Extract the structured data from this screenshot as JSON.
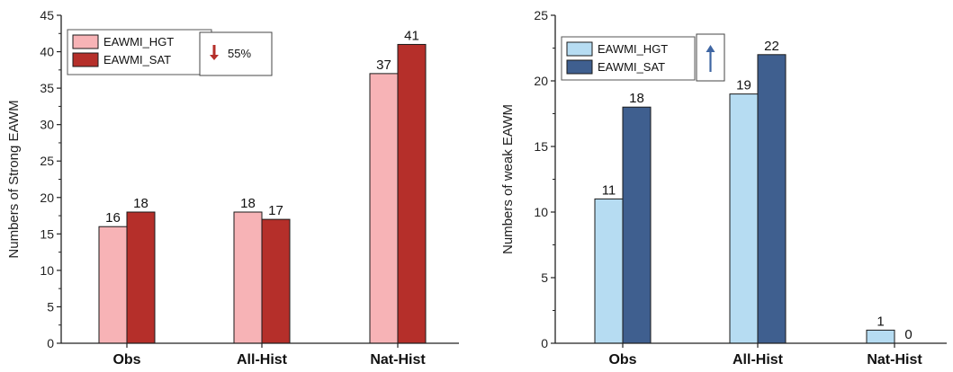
{
  "chart_data": [
    {
      "type": "bar",
      "ylabel": "Numbers of Strong EAWM",
      "xlabel": "",
      "ylim": [
        0,
        45
      ],
      "yticks": [
        0,
        5,
        10,
        15,
        20,
        25,
        30,
        35,
        40,
        45
      ],
      "categories": [
        "Obs",
        "All-Hist",
        "Nat-Hist"
      ],
      "series": [
        {
          "name": "EAWMI_HGT",
          "values": [
            16,
            18,
            37
          ],
          "color": "#f7b3b6"
        },
        {
          "name": "EAWMI_SAT",
          "values": [
            18,
            17,
            41
          ],
          "color": "#b52f2a"
        }
      ],
      "legend_position": "top-left",
      "annotation": {
        "arrow": "down",
        "arrow_color": "#b52f2a",
        "text": "55%"
      }
    },
    {
      "type": "bar",
      "ylabel": "Numbers of weak EAWM",
      "xlabel": "",
      "ylim": [
        0,
        25
      ],
      "yticks": [
        0,
        5,
        10,
        15,
        20,
        25
      ],
      "categories": [
        "Obs",
        "All-Hist",
        "Nat-Hist"
      ],
      "series": [
        {
          "name": "EAWMI_HGT",
          "values": [
            11,
            19,
            1
          ],
          "color": "#b6dcf2"
        },
        {
          "name": "EAWMI_SAT",
          "values": [
            18,
            22,
            0
          ],
          "color": "#3f5f8f"
        }
      ],
      "legend_position": "top-left",
      "annotation": {
        "arrow": "up",
        "arrow_color": "#3f66a3",
        "text": ""
      }
    }
  ]
}
